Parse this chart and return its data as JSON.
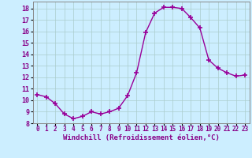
{
  "x": [
    0,
    1,
    2,
    3,
    4,
    5,
    6,
    7,
    8,
    9,
    10,
    11,
    12,
    13,
    14,
    15,
    16,
    17,
    18,
    19,
    20,
    21,
    22,
    23
  ],
  "y": [
    10.5,
    10.3,
    9.7,
    8.8,
    8.4,
    8.6,
    9.0,
    8.8,
    9.0,
    9.3,
    10.4,
    12.4,
    15.9,
    17.6,
    18.1,
    18.1,
    18.0,
    17.2,
    16.3,
    13.5,
    12.8,
    12.4,
    12.1,
    12.2
  ],
  "line_color": "#990099",
  "marker": "+",
  "markersize": 4,
  "markeredgewidth": 1.2,
  "linewidth": 1.0,
  "bg_color": "#cceeff",
  "grid_color": "#aacccc",
  "xlabel": "Windchill (Refroidissement éolien,°C)",
  "xlabel_fontsize": 6.5,
  "xtick_fontsize": 5.5,
  "ytick_fontsize": 6.0,
  "xlim": [
    -0.5,
    23.5
  ],
  "ylim": [
    8,
    18.6
  ],
  "yticks": [
    8,
    9,
    10,
    11,
    12,
    13,
    14,
    15,
    16,
    17,
    18
  ],
  "xticks": [
    0,
    1,
    2,
    3,
    4,
    5,
    6,
    7,
    8,
    9,
    10,
    11,
    12,
    13,
    14,
    15,
    16,
    17,
    18,
    19,
    20,
    21,
    22,
    23
  ]
}
